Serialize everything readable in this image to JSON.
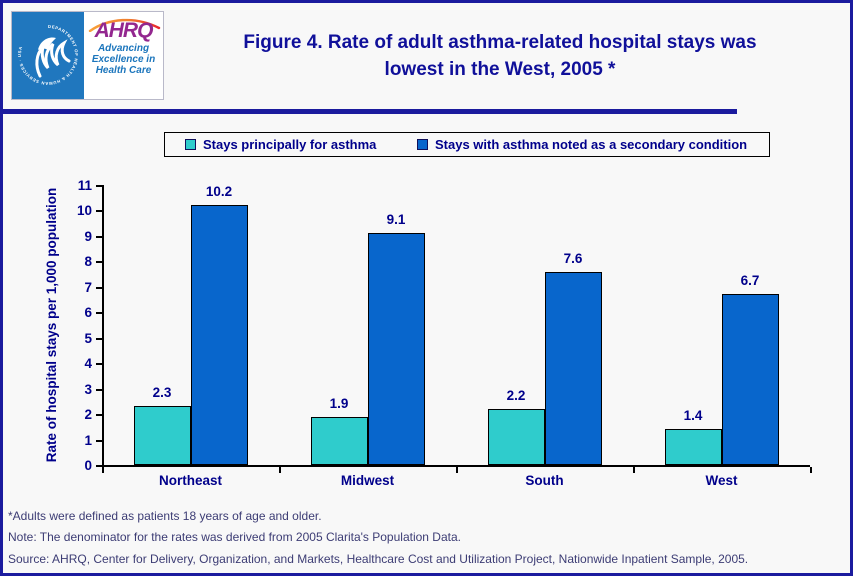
{
  "page": {
    "bg": "#F8F8F8"
  },
  "colors": {
    "page_bg": "#F8F8F8",
    "border_navy": "#1B1B9E",
    "title_navy": "#10109A",
    "label_navy": "#00008B",
    "footnote_navy": "#3C3C74",
    "hhs_blue": "#2077BE",
    "ahrq_purple": "#93278F",
    "tagline_blue": "#1B75BC",
    "axis_black": "#000000"
  },
  "header": {
    "logo": {
      "seal_text": "DEPARTMENT OF HEALTH & HUMAN SERVICES · USA",
      "ahrq_label": "AHRQ",
      "tagline_line1": "Advancing",
      "tagline_line2": "Excellence in",
      "tagline_line3": "Health Care"
    },
    "title_line1": "Figure 4. Rate of adult asthma-related hospital stays was",
    "title_line2": "lowest in the West, 2005 *"
  },
  "chart_data": {
    "type": "bar",
    "title": "Figure 4. Rate of adult asthma-related hospital stays was lowest in the West, 2005 *",
    "categories": [
      "Northeast",
      "Midwest",
      "South",
      "West"
    ],
    "series": [
      {
        "name": "Stays principally for asthma",
        "color": "#2FCCCC",
        "values": [
          2.3,
          1.9,
          2.2,
          1.4
        ]
      },
      {
        "name": "Stays with asthma noted as a secondary condition",
        "color": "#0866CC",
        "values": [
          10.2,
          9.1,
          7.6,
          6.7
        ]
      }
    ],
    "xlabel": "",
    "ylabel": "Rate of hospital stays per 1,000 population",
    "ylim": [
      0,
      11
    ],
    "ytick_step": 1,
    "grid": false,
    "legend_position": "top",
    "bar_value_labels": true
  },
  "footnotes": [
    "*Adults were defined as patients 18 years of age and older.",
    "Note: The denominator for the rates was derived from 2005 Clarita's Population Data.",
    "Source: AHRQ, Center for Delivery, Organization, and Markets, Healthcare Cost and Utilization Project, Nationwide Inpatient Sample, 2005."
  ]
}
